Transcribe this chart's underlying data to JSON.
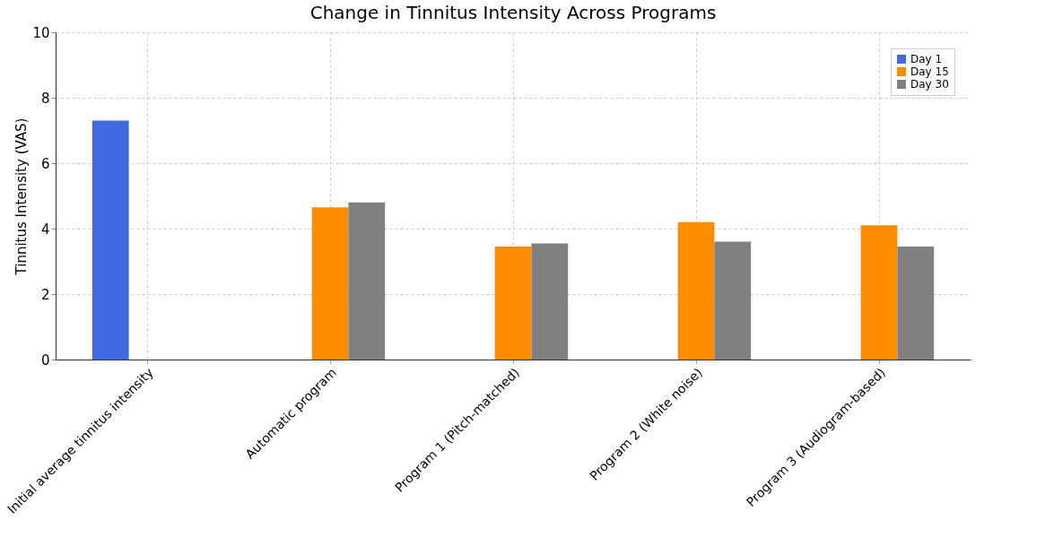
{
  "chart_data": {
    "type": "bar",
    "title": "Change in Tinnitus Intensity Across Programs",
    "ylabel": "Tinnitus Intensity (VAS)",
    "categories": [
      "Initial average tinnitus intensity",
      "Automatic program",
      "Program 1 (Pitch-matched)",
      "Program 2 (White noise)",
      "Program 3 (Audiogram-based)"
    ],
    "series": [
      {
        "name": "Day 1",
        "color": "#4169e1",
        "values": [
          7.3,
          null,
          null,
          null,
          null
        ]
      },
      {
        "name": "Day 15",
        "color": "#ff8c00",
        "values": [
          null,
          4.65,
          3.45,
          4.2,
          4.1
        ]
      },
      {
        "name": "Day 30",
        "color": "#808080",
        "values": [
          null,
          4.8,
          3.55,
          3.6,
          3.45
        ]
      }
    ],
    "ylim": [
      0,
      10
    ],
    "yticks": [
      0,
      2,
      4,
      6,
      8,
      10
    ],
    "grid": true,
    "legend": "top right"
  }
}
